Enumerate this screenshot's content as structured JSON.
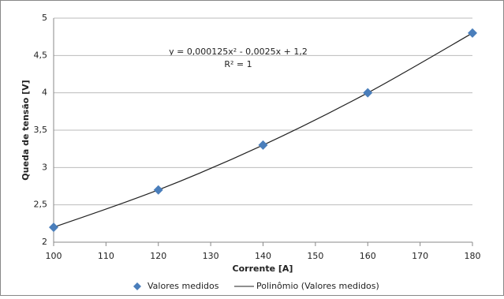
{
  "chart_data": {
    "type": "scatter",
    "x_label": "Corrente [A]",
    "y_label": "Queda de tensão [V]",
    "annotations": [
      "y = 0,000125x² - 0,0025x + 1,2",
      "R² = 1"
    ],
    "series": [
      {
        "name": "Valores medidos",
        "type": "scatter",
        "color": "#4a7ebb",
        "x": [
          100,
          120,
          140,
          160,
          180
        ],
        "values": [
          2.2,
          2.7,
          3.3,
          4.0,
          4.8
        ]
      },
      {
        "name": "Polinômio (Valores medidos)",
        "type": "line",
        "color": "#222222",
        "x": [
          100,
          120,
          140,
          160,
          180
        ],
        "values": [
          2.2,
          2.7,
          3.3,
          4.0,
          4.8
        ]
      }
    ],
    "xlim": [
      100,
      180
    ],
    "xticks": [
      100,
      110,
      120,
      130,
      140,
      150,
      160,
      170,
      180
    ],
    "ylim": [
      2,
      5
    ],
    "yticks": [
      2,
      {
        "value": 2.5,
        "label": "2,5"
      },
      3,
      {
        "value": 3.5,
        "label": "3,5"
      },
      4,
      {
        "value": 4.5,
        "label": "4,5"
      },
      5
    ],
    "grid": true,
    "legend": "bottom"
  }
}
